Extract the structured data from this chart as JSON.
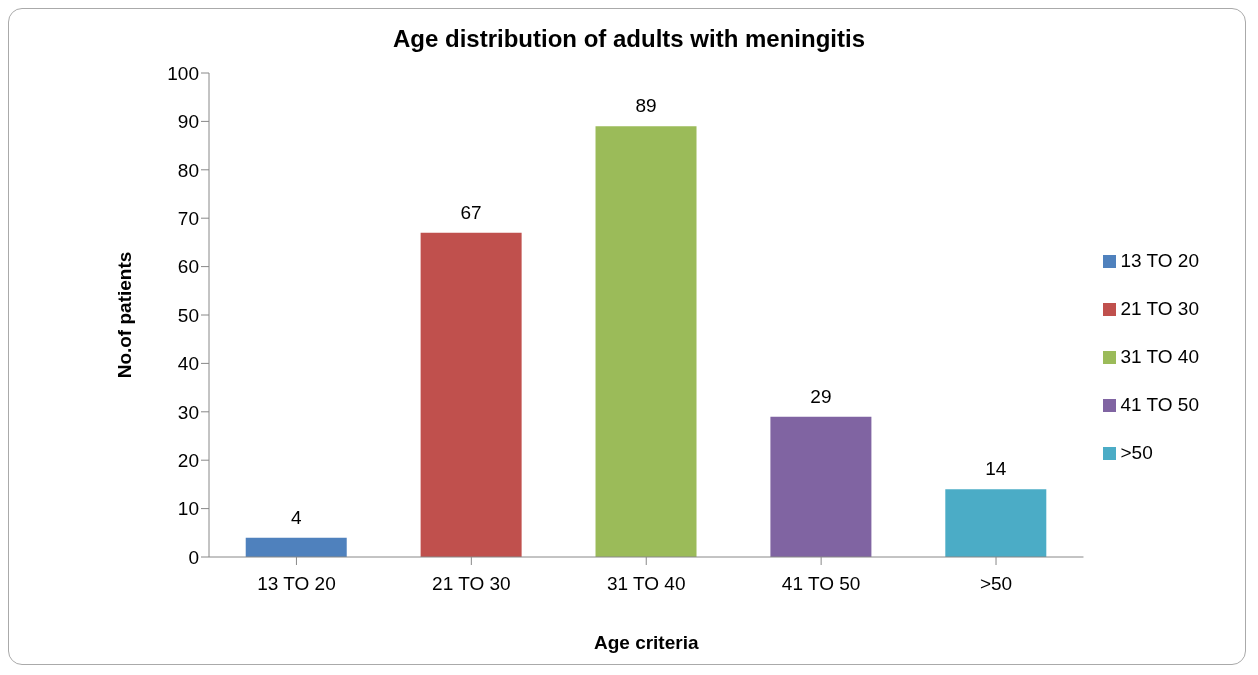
{
  "chart_data": {
    "type": "bar",
    "title": "Age distribution of adults with meningitis",
    "xlabel": "Age criteria",
    "ylabel": "No.of patients",
    "categories": [
      "13 TO 20",
      "21 TO 30",
      "31 TO 40",
      "41 TO 50",
      ">50"
    ],
    "series": [
      {
        "name": "13 TO 20",
        "color": "#4f81bd",
        "values": [
          4,
          null,
          null,
          null,
          null
        ]
      },
      {
        "name": "21 TO 30",
        "color": "#c0504d",
        "values": [
          null,
          67,
          null,
          null,
          null
        ]
      },
      {
        "name": "31 TO 40",
        "color": "#9bbb59",
        "values": [
          null,
          null,
          89,
          null,
          null
        ]
      },
      {
        "name": "41 TO 50",
        "color": "#8064a2",
        "values": [
          null,
          null,
          null,
          29,
          null
        ]
      },
      {
        "name": ">50",
        "color": "#4bacc6",
        "values": [
          null,
          null,
          null,
          null,
          14
        ]
      }
    ],
    "data_labels": true,
    "ylim": [
      0,
      100
    ],
    "yticks": [
      0,
      10,
      20,
      30,
      40,
      50,
      60,
      70,
      80,
      90,
      100
    ],
    "grid": false,
    "legend": "right"
  }
}
